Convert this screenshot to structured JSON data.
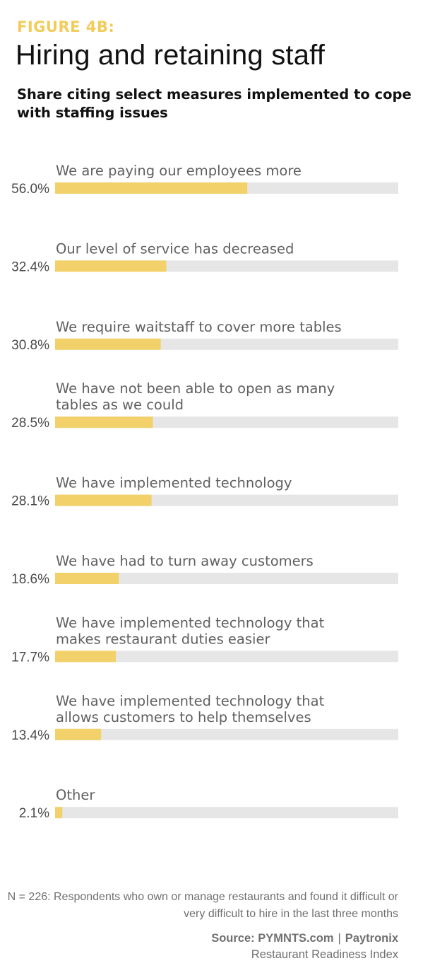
{
  "header": {
    "figure_label": "FIGURE 4B:",
    "title": "Hiring and retaining staff",
    "subtitle": "Share citing select measures implemented to cope with staffing issues"
  },
  "chart_data": {
    "type": "bar",
    "orientation": "horizontal",
    "categories": [
      [
        "We are paying our employees more"
      ],
      [
        "Our level of service has decreased"
      ],
      [
        "We require waitstaff to cover more tables"
      ],
      [
        "We have not been able to open as many",
        "tables as we could"
      ],
      [
        "We have implemented technology"
      ],
      [
        "We have had to turn away customers"
      ],
      [
        "We have implemented technology that",
        "makes restaurant duties easier"
      ],
      [
        "We have implemented technology that",
        "allows customers to help themselves"
      ],
      [
        "Other"
      ]
    ],
    "values": [
      56.0,
      32.4,
      30.8,
      28.5,
      28.1,
      18.6,
      17.7,
      13.4,
      2.1
    ],
    "value_labels": [
      "56.0%",
      "32.4%",
      "30.8%",
      "28.5%",
      "28.1%",
      "18.6%",
      "17.7%",
      "13.4%",
      "2.1%"
    ],
    "unit": "%",
    "xlim": [
      0,
      100
    ],
    "bar_color": "#f2d16b",
    "track_color": "#e6e6e6",
    "grid": false,
    "legend": "none"
  },
  "footer": {
    "note": "N = 226: Respondents who own or manage restaurants and found it difficult or very difficult to hire in the last three months",
    "source_left": "Source: PYMNTS.com",
    "source_sep": "|",
    "source_right": "Paytronix",
    "index_name": "Restaurant Readiness Index"
  }
}
